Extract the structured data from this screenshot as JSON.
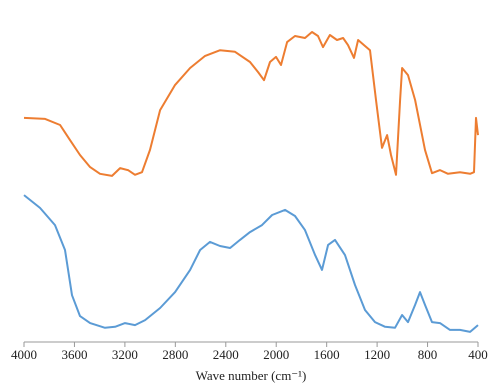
{
  "chart_data": {
    "type": "line",
    "x_label": "Wave number (cm⁻¹)",
    "xlim": [
      4000,
      400
    ],
    "xticks": [
      4000,
      3600,
      3200,
      2800,
      2400,
      2000,
      1600,
      1200,
      800,
      400
    ],
    "ylim": [
      0,
      100
    ],
    "series": [
      {
        "color": "#ED7D31",
        "x": [
          4000,
          3833,
          3714,
          3635,
          3556,
          3476,
          3397,
          3302,
          3238,
          3175,
          3120,
          3064,
          3001,
          2921,
          2802,
          2683,
          2564,
          2445,
          2327,
          2208,
          2144,
          2097,
          2049,
          2002,
          1962,
          1914,
          1851,
          1772,
          1716,
          1669,
          1629,
          1574,
          1518,
          1470,
          1431,
          1383,
          1351,
          1304,
          1256,
          1209,
          1161,
          1121,
          1090,
          1050,
          1018,
          1002,
          955,
          899,
          820,
          765,
          701,
          638,
          543,
          463,
          432,
          416,
          400
        ],
        "values": [
          66.5,
          66.2,
          64.4,
          59.9,
          55.5,
          51.9,
          49.9,
          49.3,
          51.6,
          51.0,
          49.6,
          50.4,
          57.0,
          68.8,
          76.3,
          81.3,
          84.9,
          86.6,
          86.1,
          83.1,
          80.1,
          77.7,
          83.1,
          84.6,
          82.2,
          89.0,
          90.8,
          90.2,
          92.0,
          90.8,
          87.5,
          91.1,
          89.6,
          90.2,
          88.1,
          84.3,
          89.6,
          88.1,
          86.6,
          71.8,
          57.6,
          61.4,
          55.5,
          49.6,
          71.8,
          81.3,
          79.2,
          71.8,
          57.0,
          50.1,
          51.0,
          49.9,
          50.4,
          49.9,
          50.4,
          66.5,
          61.4
        ]
      },
      {
        "color": "#5B9BD5",
        "x": [
          4000,
          3873,
          3754,
          3675,
          3619,
          3556,
          3476,
          3358,
          3278,
          3199,
          3120,
          3040,
          2921,
          2802,
          2683,
          2604,
          2525,
          2446,
          2366,
          2287,
          2208,
          2113,
          2033,
          1930,
          1851,
          1772,
          1692,
          1637,
          1589,
          1534,
          1455,
          1375,
          1296,
          1217,
          1137,
          1058,
          1002,
          955,
          899,
          860,
          820,
          765,
          701,
          622,
          543,
          463,
          400
        ],
        "values": [
          43.6,
          39.8,
          34.7,
          27.3,
          13.9,
          7.7,
          5.6,
          4.2,
          4.5,
          5.6,
          5.0,
          6.5,
          10.1,
          14.8,
          21.4,
          27.3,
          29.7,
          28.5,
          27.9,
          30.3,
          32.6,
          34.7,
          37.7,
          39.2,
          37.4,
          33.2,
          25.8,
          21.4,
          28.8,
          30.3,
          25.8,
          16.9,
          9.5,
          5.9,
          4.5,
          4.2,
          8.0,
          5.9,
          11.0,
          14.8,
          11.0,
          5.9,
          5.6,
          3.6,
          3.6,
          3.0,
          5.0
        ]
      }
    ]
  }
}
